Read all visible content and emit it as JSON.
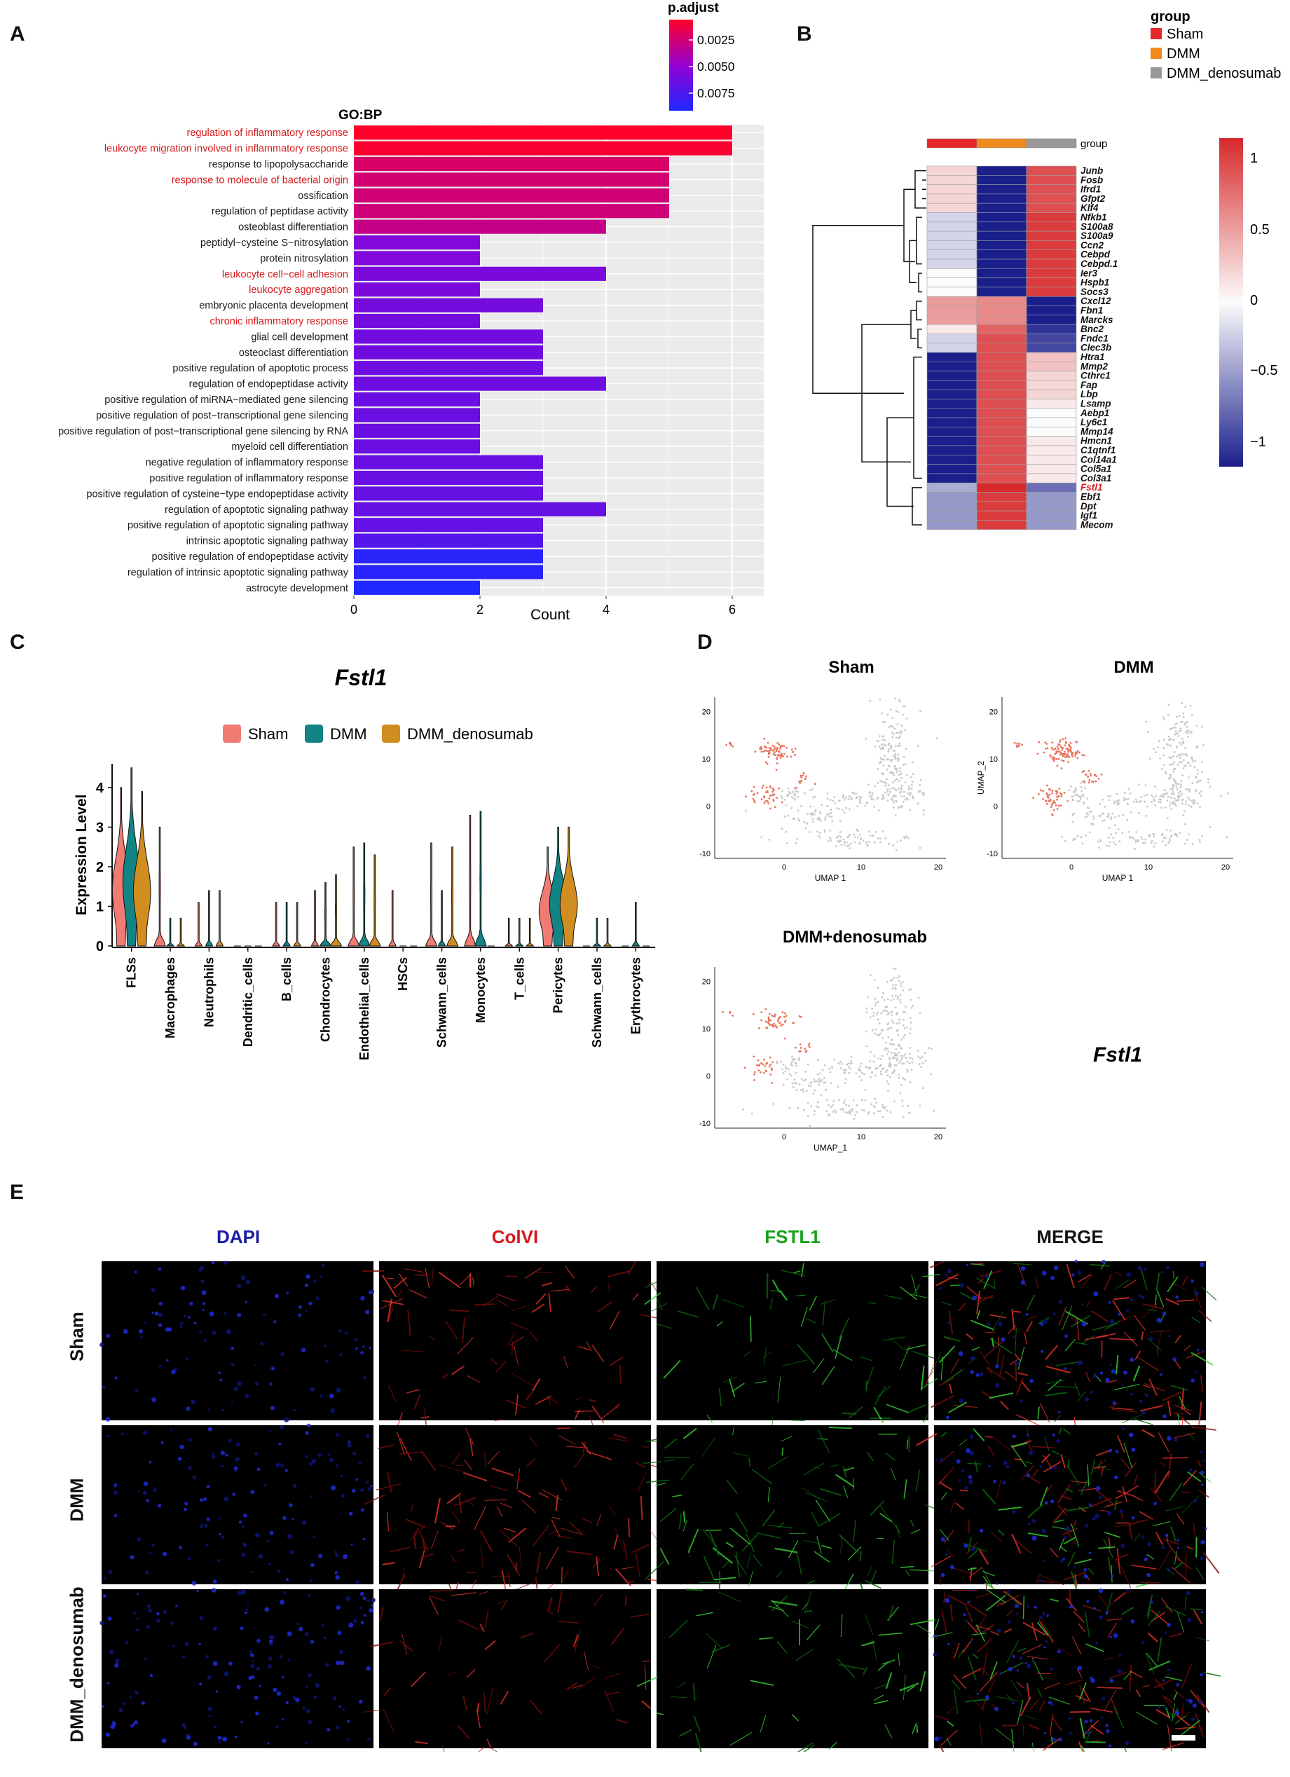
{
  "panels": {
    "A": "A",
    "B": "B",
    "C": "C",
    "D": "D",
    "E": "E"
  },
  "colors": {
    "sham": "#e5282a",
    "dmm": "#f08a1c",
    "denos": "#999999",
    "violin_sham": "#f07b72",
    "violin_dmm": "#138485",
    "violin_denos": "#d18e20",
    "umap_hi": "#e8735a",
    "umap_bg": "#c8c8c8",
    "red_label": "#d7191c"
  },
  "chart_data": [
    {
      "id": "A",
      "type": "bar",
      "orientation": "horizontal",
      "title": "GO:BP",
      "xlabel": "Count",
      "xlim": [
        0,
        6.5
      ],
      "xticks": [
        0,
        2,
        4,
        6
      ],
      "legend": {
        "title": "p.adjust",
        "ticks": [
          "0.0025",
          "0.0050",
          "0.0075"
        ],
        "placement": "top-right"
      },
      "categories": [
        "regulation of inflammatory response",
        "leukocyte migration involved in inflammatory response",
        "response to lipopolysaccharide",
        "response to molecule of bacterial origin",
        "ossification",
        "regulation of peptidase activity",
        "osteoblast differentiation",
        "peptidyl−cysteine S−nitrosylation",
        "protein nitrosylation",
        "leukocyte cell−cell adhesion",
        "leukocyte aggregation",
        "embryonic placenta development",
        "chronic inflammatory response",
        "glial cell development",
        "osteoclast differentiation",
        "positive regulation of apoptotic process",
        "regulation of endopeptidase activity",
        "positive regulation of miRNA−mediated gene silencing",
        "positive regulation of post−transcriptional gene silencing",
        "positive regulation of post−transcriptional gene silencing by RNA",
        "myeloid cell differentiation",
        "negative regulation of inflammatory response",
        "positive regulation of inflammatory response",
        "positive regulation of cysteine−type endopeptidase activity",
        "regulation of apoptotic signaling pathway",
        "positive regulation of apoptotic signaling pathway",
        "intrinsic apoptotic signaling pathway",
        "positive regulation of endopeptidase activity",
        "regulation of intrinsic apoptotic signaling pathway",
        "astrocyte development"
      ],
      "values": [
        6,
        6,
        5,
        5,
        5,
        5,
        4,
        2,
        2,
        4,
        2,
        3,
        2,
        3,
        3,
        3,
        4,
        2,
        2,
        2,
        2,
        3,
        3,
        3,
        4,
        3,
        3,
        3,
        3,
        2
      ],
      "p_adjust": [
        0.0005,
        0.0007,
        0.0022,
        0.0024,
        0.0025,
        0.0026,
        0.003,
        0.0058,
        0.0058,
        0.006,
        0.006,
        0.0062,
        0.0063,
        0.0064,
        0.0064,
        0.0065,
        0.0065,
        0.0066,
        0.0066,
        0.0066,
        0.0066,
        0.0067,
        0.0067,
        0.0068,
        0.0068,
        0.0069,
        0.0075,
        0.009,
        0.0091,
        0.0095
      ],
      "highlighted": [
        0,
        1,
        3,
        9,
        10,
        12
      ]
    },
    {
      "id": "B",
      "type": "heatmap",
      "legend_title": "group",
      "groups": [
        "Sham",
        "DMM",
        "DMM_denosumab"
      ],
      "group_row_label": "group",
      "scale_ticks": [
        "1",
        "0.5",
        "0",
        "−0.5",
        "−1"
      ],
      "rows": [
        "Junb",
        "Fosb",
        "Ifrd1",
        "Gfpt2",
        "Klf4",
        "Nfkb1",
        "S100a8",
        "S100a9",
        "Ccn2",
        "Cebpd",
        "Cebpd.1",
        "Ier3",
        "Hspb1",
        "Socs3",
        "Cxcl12",
        "Fbn1",
        "Marcks",
        "Bnc2",
        "Fndc1",
        "Clec3b",
        "Htra1",
        "Mmp2",
        "Cthrc1",
        "Fap",
        "Lbp",
        "Lsamp",
        "Aebp1",
        "Ly6c1",
        "Mmp14",
        "Hmcn1",
        "C1qtnf1",
        "Col14a1",
        "Col5a1",
        "Col3a1",
        "Fstl1",
        "Ebf1",
        "Dpt",
        "Igf1",
        "Mecom"
      ],
      "highlighted_row": "Fstl1",
      "values": [
        [
          0.2,
          -1.1,
          0.9
        ],
        [
          0.2,
          -1.1,
          0.9
        ],
        [
          0.2,
          -1.1,
          0.9
        ],
        [
          0.2,
          -1.1,
          0.9
        ],
        [
          0.2,
          -1.1,
          0.9
        ],
        [
          -0.2,
          -1.1,
          1.0
        ],
        [
          -0.2,
          -1.1,
          1.0
        ],
        [
          -0.2,
          -1.1,
          1.0
        ],
        [
          -0.2,
          -1.1,
          1.0
        ],
        [
          -0.2,
          -1.1,
          1.0
        ],
        [
          -0.2,
          -1.1,
          1.0
        ],
        [
          0.0,
          -1.1,
          1.0
        ],
        [
          0.0,
          -1.1,
          1.0
        ],
        [
          0.0,
          -1.1,
          1.0
        ],
        [
          0.5,
          0.6,
          -1.1
        ],
        [
          0.5,
          0.6,
          -1.1
        ],
        [
          0.5,
          0.6,
          -1.1
        ],
        [
          0.1,
          0.8,
          -1.0
        ],
        [
          -0.2,
          0.9,
          -0.9
        ],
        [
          -0.2,
          0.9,
          -0.9
        ],
        [
          -1.1,
          0.9,
          0.3
        ],
        [
          -1.1,
          0.9,
          0.3
        ],
        [
          -1.1,
          0.9,
          0.2
        ],
        [
          -1.1,
          0.9,
          0.2
        ],
        [
          -1.1,
          0.9,
          0.2
        ],
        [
          -1.1,
          0.9,
          0.1
        ],
        [
          -1.1,
          0.9,
          0.0
        ],
        [
          -1.1,
          0.9,
          0.0
        ],
        [
          -1.1,
          0.9,
          0.0
        ],
        [
          -1.1,
          0.9,
          0.1
        ],
        [
          -1.1,
          0.9,
          0.1
        ],
        [
          -1.1,
          0.9,
          0.1
        ],
        [
          -1.1,
          0.9,
          0.1
        ],
        [
          -1.1,
          0.9,
          0.1
        ],
        [
          -0.4,
          1.1,
          -0.7
        ],
        [
          -0.5,
          1.0,
          -0.5
        ],
        [
          -0.5,
          1.0,
          -0.5
        ],
        [
          -0.5,
          1.0,
          -0.5
        ],
        [
          -0.5,
          1.0,
          -0.5
        ]
      ]
    },
    {
      "id": "C",
      "type": "violin",
      "title": "Fstl1",
      "ylabel": "Expression Level",
      "ylim": [
        0,
        4.6
      ],
      "yticks": [
        0,
        1,
        2,
        3,
        4
      ],
      "series": [
        "Sham",
        "DMM",
        "DMM_denosumab"
      ],
      "categories": [
        "FLSs",
        "Macrophages",
        "Neutrophils",
        "Dendritic_cells",
        "B_cells",
        "Chondrocytes",
        "Endothelial_cells",
        "HSCs",
        "Schwann_cells",
        "Monocytes",
        "T_cells",
        "Pericytes",
        "Schwann_cells",
        "Erythrocytes"
      ],
      "max_expression": [
        [
          4.0,
          4.5,
          3.9
        ],
        [
          3.0,
          0.7,
          0.7
        ],
        [
          1.1,
          1.4,
          1.4
        ],
        [
          0.0,
          0.0,
          0.0
        ],
        [
          1.1,
          1.1,
          1.1
        ],
        [
          1.4,
          1.6,
          1.8
        ],
        [
          2.5,
          2.6,
          2.3
        ],
        [
          1.4,
          0.0,
          0.0
        ],
        [
          2.6,
          1.4,
          2.5
        ],
        [
          3.3,
          3.4,
          0.0
        ],
        [
          0.7,
          0.7,
          0.7
        ],
        [
          2.5,
          3.0,
          3.0
        ],
        [
          0.0,
          0.7,
          0.7
        ],
        [
          0.0,
          1.1,
          0.0
        ]
      ]
    },
    {
      "id": "D",
      "type": "scatter",
      "subtype": "umap",
      "gene_label": "Fstl1",
      "xlabel": "UMAP 1",
      "xlabel_alt": "UMAP_1",
      "ylabel": "UMAP_2",
      "xticks": [
        0,
        10,
        20
      ],
      "yticks": [
        -10,
        0,
        10,
        20
      ],
      "xlim": [
        -9,
        21
      ],
      "ylim": [
        -11,
        23
      ],
      "panels": [
        "Sham",
        "DMM",
        "DMM+denosumab"
      ]
    }
  ],
  "micrographs": {
    "columns": [
      "DAPI",
      "ColVI",
      "FSTL1",
      "MERGE"
    ],
    "column_colors": [
      "#1b1ba8",
      "#d7191c",
      "#1aa01a",
      "#111111"
    ],
    "rows": [
      "Sham",
      "DMM",
      "DMM_denosumab"
    ]
  }
}
